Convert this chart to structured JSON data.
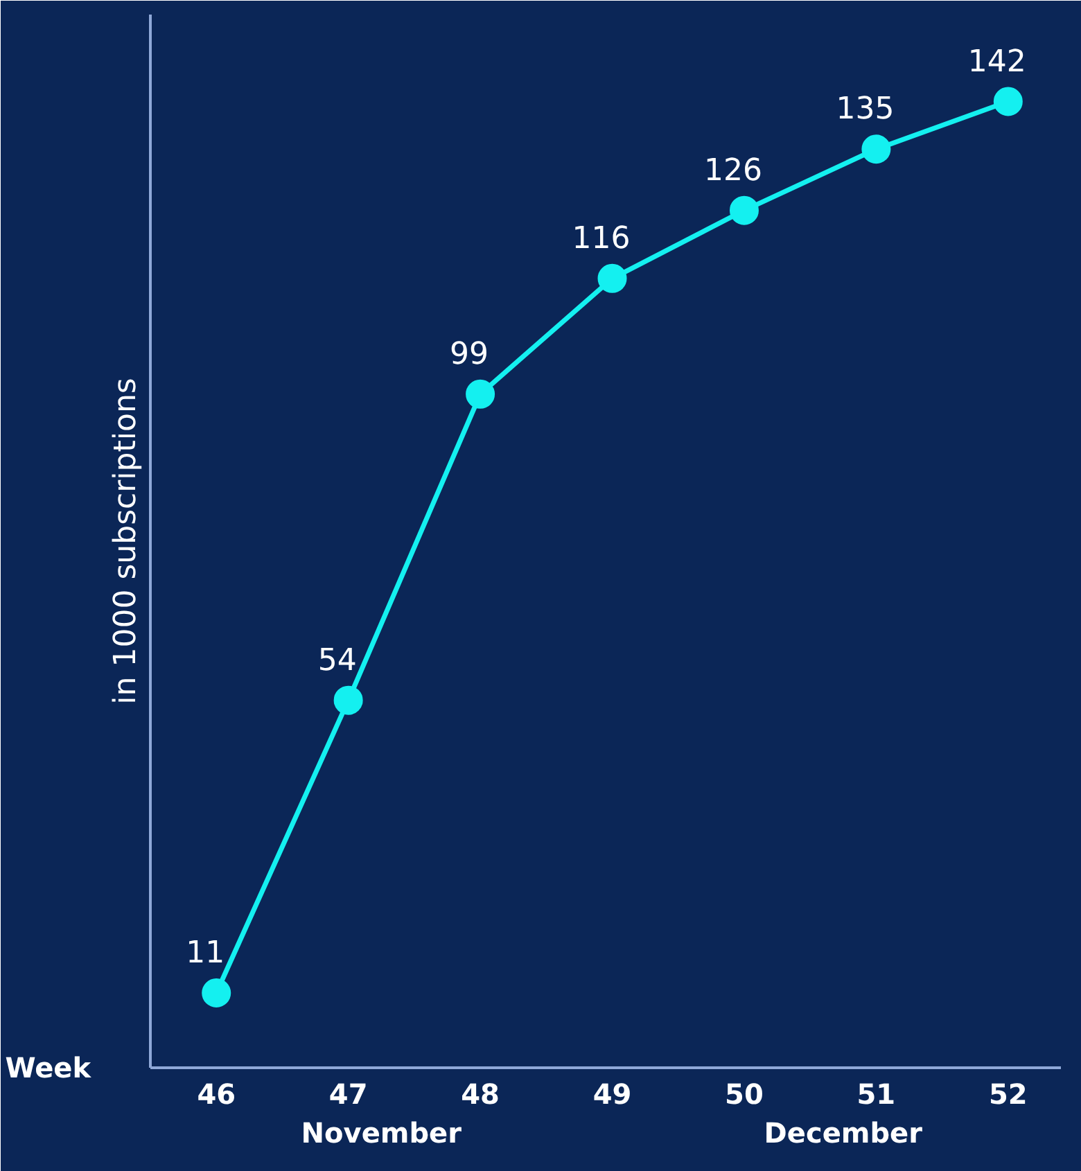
{
  "chart_data": {
    "type": "line",
    "xlabel": "Week",
    "ylabel": "in 1000 subscriptions",
    "categories": [
      "46",
      "47",
      "48",
      "49",
      "50",
      "51",
      "52"
    ],
    "series": [
      {
        "color": "#14f0f0",
        "values": [
          11,
          54,
          99,
          116,
          126,
          135,
          142
        ]
      }
    ],
    "data_labels": true,
    "marker": "circle",
    "line_style": "solid",
    "grid": false,
    "tick_labels": "x",
    "annotations": [
      "November",
      "December"
    ]
  }
}
